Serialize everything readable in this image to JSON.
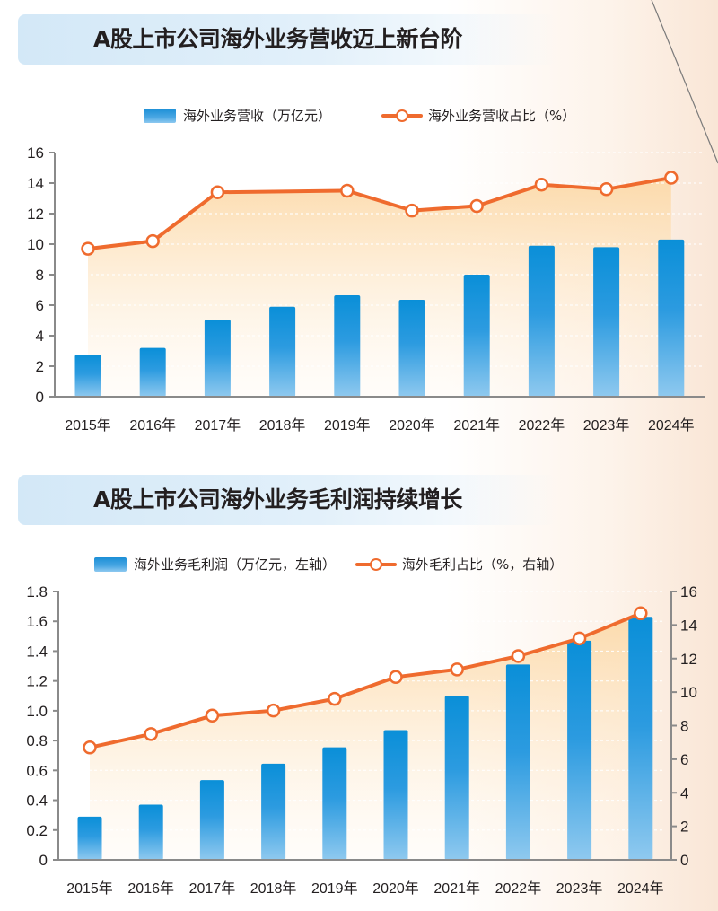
{
  "charts_page": {
    "chart1": {
      "title": "A股上市公司海外业务营收迈上新台阶",
      "legend_bar": "海外业务营收（万亿元）",
      "legend_line": "海外业务营收占比（%）"
    },
    "chart2": {
      "title": "A股上市公司海外业务毛利润持续增长",
      "legend_bar": "海外业务毛利润（万亿元，左轴）",
      "legend_line": "海外毛利占比（%，右轴）"
    }
  },
  "colors": {
    "bar_top": "#0a8fd8",
    "bar_bottom": "#8fc9ef",
    "line": "#ef6b2e",
    "area_top": "#fcd9a8",
    "axis": "#8a8a8a",
    "banner": "#d3e8f7"
  },
  "chart_data": [
    {
      "type": "bar+line",
      "title": "A股上市公司海外业务营收迈上新台阶",
      "categories": [
        "2015年",
        "2016年",
        "2017年",
        "2018年",
        "2019年",
        "2020年",
        "2021年",
        "2022年",
        "2023年",
        "2024年"
      ],
      "series": [
        {
          "name": "海外业务营收（万亿元）",
          "type": "bar",
          "axis": "left",
          "values": [
            2.75,
            3.2,
            5.05,
            5.9,
            6.65,
            6.35,
            8.0,
            9.9,
            9.8,
            10.3
          ]
        },
        {
          "name": "海外业务营收占比（%）",
          "type": "line",
          "axis": "left",
          "values": [
            9.7,
            10.2,
            13.4,
            13.45,
            13.5,
            12.2,
            12.5,
            13.9,
            13.6,
            14.35
          ],
          "markers": [
            true,
            true,
            true,
            false,
            true,
            true,
            true,
            true,
            true,
            true
          ]
        }
      ],
      "y_left": {
        "min": 0,
        "max": 16,
        "ticks": [
          "0",
          "2",
          "4",
          "6",
          "8",
          "10",
          "12",
          "14",
          "16"
        ]
      },
      "grid": "dashed white at 12",
      "legend": "top-center"
    },
    {
      "type": "bar+line",
      "title": "A股上市公司海外业务毛利润持续增长",
      "categories": [
        "2015年",
        "2016年",
        "2017年",
        "2018年",
        "2019年",
        "2020年",
        "2021年",
        "2022年",
        "2023年",
        "2024年"
      ],
      "series": [
        {
          "name": "海外业务毛利润（万亿元，左轴）",
          "type": "bar",
          "axis": "left",
          "values": [
            0.29,
            0.37,
            0.535,
            0.645,
            0.755,
            0.87,
            1.1,
            1.31,
            1.47,
            1.63
          ]
        },
        {
          "name": "海外毛利占比（%，右轴）",
          "type": "line",
          "axis": "right",
          "values": [
            6.7,
            7.5,
            8.6,
            8.9,
            9.6,
            10.9,
            11.35,
            12.15,
            13.2,
            14.7
          ],
          "markers": [
            true,
            true,
            true,
            true,
            true,
            true,
            true,
            true,
            true,
            true
          ]
        }
      ],
      "y_left": {
        "min": 0,
        "max": 1.8,
        "ticks": [
          "0",
          "0.2",
          "0.4",
          "0.6",
          "0.8",
          "1.0",
          "1.2",
          "1.4",
          "1.6",
          "1.8"
        ]
      },
      "y_right": {
        "min": 0,
        "max": 16,
        "ticks": [
          "0",
          "2",
          "4",
          "6",
          "8",
          "10",
          "12",
          "14",
          "16"
        ]
      },
      "grid": "dashed white",
      "legend": "top-center"
    }
  ]
}
